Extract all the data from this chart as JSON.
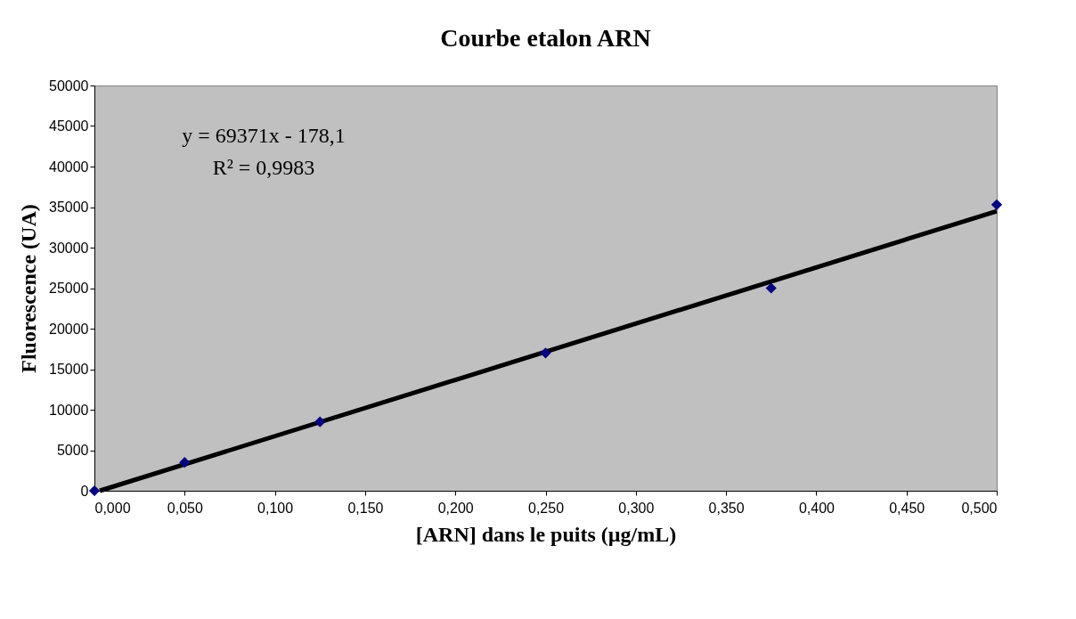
{
  "chart_data": {
    "type": "scatter",
    "title": "Courbe etalon ARN",
    "xlabel": "[ARN] dans le puits (µg/mL)",
    "ylabel": "Fluorescence (UA)",
    "x": [
      0,
      0.05,
      0.125,
      0.25,
      0.375,
      0.5
    ],
    "series": [
      {
        "color": "#000080",
        "values": [
          0,
          3500,
          8500,
          17000,
          25000,
          35300
        ],
        "marker": "diamond"
      },
      {
        "type": "line",
        "color": "#000000",
        "x": [
          0.003,
          0.5
        ],
        "values": [
          0,
          34500
        ],
        "line_style": "solid"
      }
    ],
    "xlim": [
      0,
      0.5
    ],
    "xticks": [
      {
        "value": 0,
        "label": "0,000"
      },
      {
        "value": 0.05,
        "label": "0,050"
      },
      {
        "value": 0.1,
        "label": "0,100"
      },
      {
        "value": 0.15,
        "label": "0,150"
      },
      {
        "value": 0.2,
        "label": "0,200"
      },
      {
        "value": 0.25,
        "label": "0,250"
      },
      {
        "value": 0.3,
        "label": "0,300"
      },
      {
        "value": 0.35,
        "label": "0,350"
      },
      {
        "value": 0.4,
        "label": "0,400"
      },
      {
        "value": 0.45,
        "label": "0,450"
      },
      {
        "value": 0.5,
        "label": "0,500"
      }
    ],
    "ylim": [
      0,
      50000
    ],
    "yticks": [
      0,
      5000,
      10000,
      15000,
      20000,
      25000,
      30000,
      35000,
      40000,
      45000,
      50000
    ],
    "annotations": [
      "y = 69371x - 178,1",
      "R² = 0,9983"
    ],
    "grid": false
  }
}
